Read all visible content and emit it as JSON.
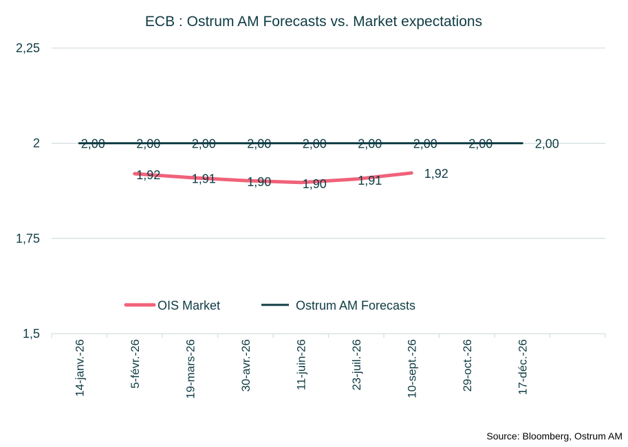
{
  "chart_data": {
    "type": "line",
    "title": "ECB :  Ostrum AM Forecasts vs. Market expectations",
    "xlabel": "",
    "ylabel": "",
    "categories": [
      "14-janv.-26",
      "5-févr.-26",
      "19-mars-26",
      "30-avr.-26",
      "11-juin-26",
      "23-juil.-26",
      "10-sept.-26",
      "29-oct.-26",
      "17-déc.-26",
      ""
    ],
    "ylim": [
      1.5,
      2.25
    ],
    "yticks": [
      1.5,
      1.75,
      2,
      2.25
    ],
    "ytick_labels": [
      "1,5",
      "1,75",
      "2",
      "2,25"
    ],
    "grid": "horizontal",
    "legend_position": "inside-bottom",
    "series": [
      {
        "name": "OIS Market",
        "color": "#f0627a",
        "values": [
          null,
          1.92,
          1.91,
          1.902,
          1.897,
          1.906,
          1.922,
          null,
          null,
          null
        ],
        "labels": [
          "",
          "1,92",
          "1,91",
          "1,90",
          "1,90",
          "1,91",
          "1,92",
          "",
          "",
          ""
        ]
      },
      {
        "name": "Ostrum AM Forecasts",
        "color": "#0e3b43",
        "values": [
          2.0,
          2.0,
          2.0,
          2.0,
          2.0,
          2.0,
          2.0,
          2.0,
          2.0,
          null
        ],
        "labels": [
          "2,00",
          "2,00",
          "2,00",
          "2,00",
          "2,00",
          "2,00",
          "2,00",
          "2,00",
          "2,00",
          ""
        ]
      }
    ],
    "source": "Source: Bloomberg,  Ostrum AM"
  }
}
